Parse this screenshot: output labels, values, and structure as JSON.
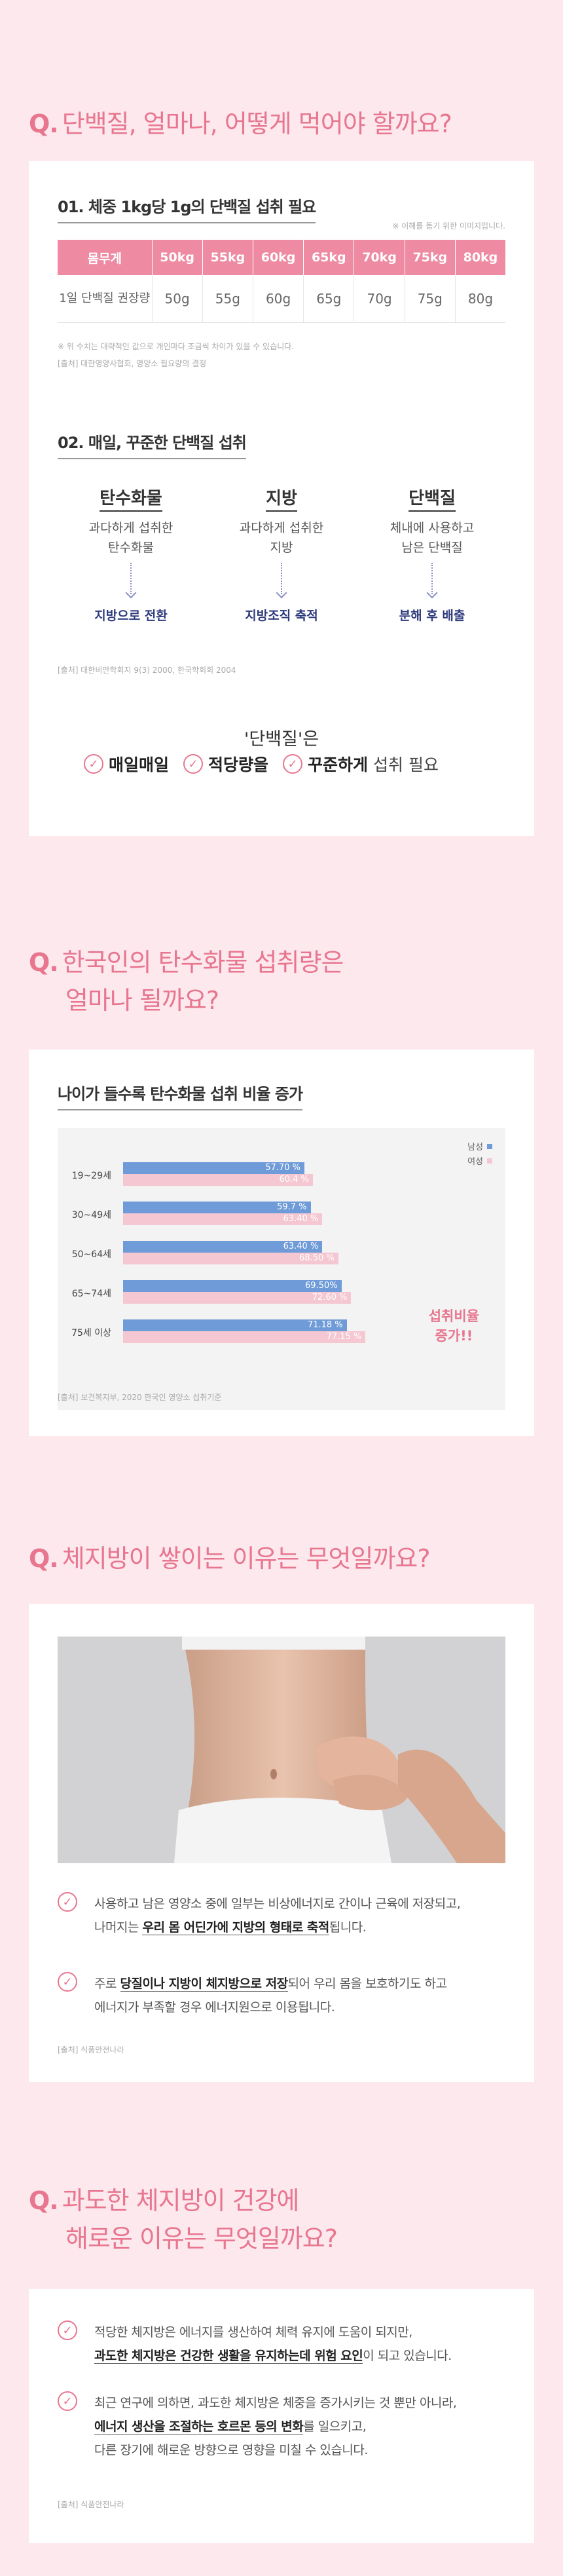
{
  "section1": {
    "q": "Q.",
    "title": "단백질, 얼마나, 어떻게 먹어야 할까요?",
    "sub1": "01. 체중 1kg당 1g의 단백질 섭취 필요",
    "table_note": "※ 이해를 돕기 위한 이미지입니다.",
    "table": {
      "headers": [
        "몸무게",
        "50kg",
        "55kg",
        "60kg",
        "65kg",
        "70kg",
        "75kg",
        "80kg"
      ],
      "row_head": "1일 단백질 권장량",
      "values": [
        "50g",
        "55g",
        "60g",
        "65g",
        "70g",
        "75g",
        "80g"
      ]
    },
    "footnote1": "※ 위 수치는 대략적인 값으로 개인마다 조금씩 차이가 있을 수 있습니다.",
    "footnote2": "[출처] 대한영양사협회, 영양소 필요량의 결정",
    "sub2": "02. 매일, 꾸준한 단백질 섭취",
    "columns": [
      {
        "title": "탄수화물",
        "desc1": "과다하게 섭취한",
        "desc2": "탄수화물",
        "result": "지방으로 전환"
      },
      {
        "title": "지방",
        "desc1": "과다하게 섭취한",
        "desc2": "지방",
        "result": "지방조직 축적"
      },
      {
        "title": "단백질",
        "desc1": "체내에 사용하고",
        "desc2": "남은 단백질",
        "result": "분해 후 배출"
      }
    ],
    "source2": "[출처] 대한비만학회지 9(3) 2000, 한국학회회 2004",
    "summary_title": "'단백질'은",
    "checks": [
      "매일매일",
      "적당량을",
      "꾸준하게"
    ],
    "checks_tail": "섭취 필요"
  },
  "section2": {
    "q": "Q.",
    "title_line1": "한국인의 탄수화물 섭취량은",
    "title_line2": "얼마나 될까요?",
    "sub": "나이가 들수록 탄수화물 섭취 비율 증가",
    "legend_male": "남성",
    "legend_female": "여성",
    "side_line1": "섭취비율",
    "side_line2": "증가!!",
    "source": "[출처] 보건복지부, 2020 한국인 영양소 섭취기준"
  },
  "chart_data": {
    "type": "bar",
    "orientation": "horizontal",
    "categories": [
      "19~29세",
      "30~49세",
      "50~64세",
      "65~74세",
      "75세 이상"
    ],
    "series": [
      {
        "name": "남성",
        "values": [
          57.7,
          59.7,
          63.4,
          69.5,
          71.18
        ],
        "labels": [
          "57.70 %",
          "59.7 %",
          "63.40 %",
          "69.50%",
          "71.18 %"
        ],
        "color": "#6f9bd8"
      },
      {
        "name": "여성",
        "values": [
          60.4,
          63.4,
          68.5,
          72.6,
          77.15
        ],
        "labels": [
          "60.4 %",
          "63.40 %",
          "68.50 %",
          "72.60 %",
          "77.15 %"
        ],
        "color": "#f4c7d2"
      }
    ],
    "xlim": [
      0,
      100
    ],
    "grid": false,
    "legend": "top-right"
  },
  "section3": {
    "q": "Q.",
    "title": "체지방이 쌓이는 이유는 무엇일까요?",
    "b1_pre": "사용하고 남은 영양소 중에 일부는 비상에너지로 간이나 근육에 저장되고,",
    "b1_mid_pre": "나머지는 ",
    "b1_bold": "우리 몸 어딘가에 지방의 형태로 축적",
    "b1_tail": "됩니다.",
    "b2_pre": "주로 ",
    "b2_bold": "당질이나 지방이 체지방으로 저장",
    "b2_tail": "되어 우리 몸을 보호하기도 하고",
    "b2_line2": "에너지가 부족할 경우 에너지원으로 이용됩니다.",
    "source": "[출처] 식품안전나라"
  },
  "section4": {
    "q": "Q.",
    "title_line1": "과도한 체지방이 건강에",
    "title_line2": "해로운 이유는 무엇일까요?",
    "b1_line1": "적당한 체지방은 에너지를 생산하여 체력 유지에 도움이 되지만,",
    "b1_bold": "과도한 체지방은 건강한 생활을 유지하는데 위험 요인",
    "b1_tail": "이 되고 있습니다.",
    "b2_line1": "최근 연구에 의하면, 과도한 체지방은 체중을 증가시키는 것 뿐만 아니라,",
    "b2_bold": "에너지 생산을 조절하는 호르몬 등의 변화",
    "b2_tail": "를 일으키고,",
    "b2_line3": "다른 장기에 해로운 방향으로 영향을 미칠 수 있습니다.",
    "source": "[출처] 식품안전나라"
  }
}
